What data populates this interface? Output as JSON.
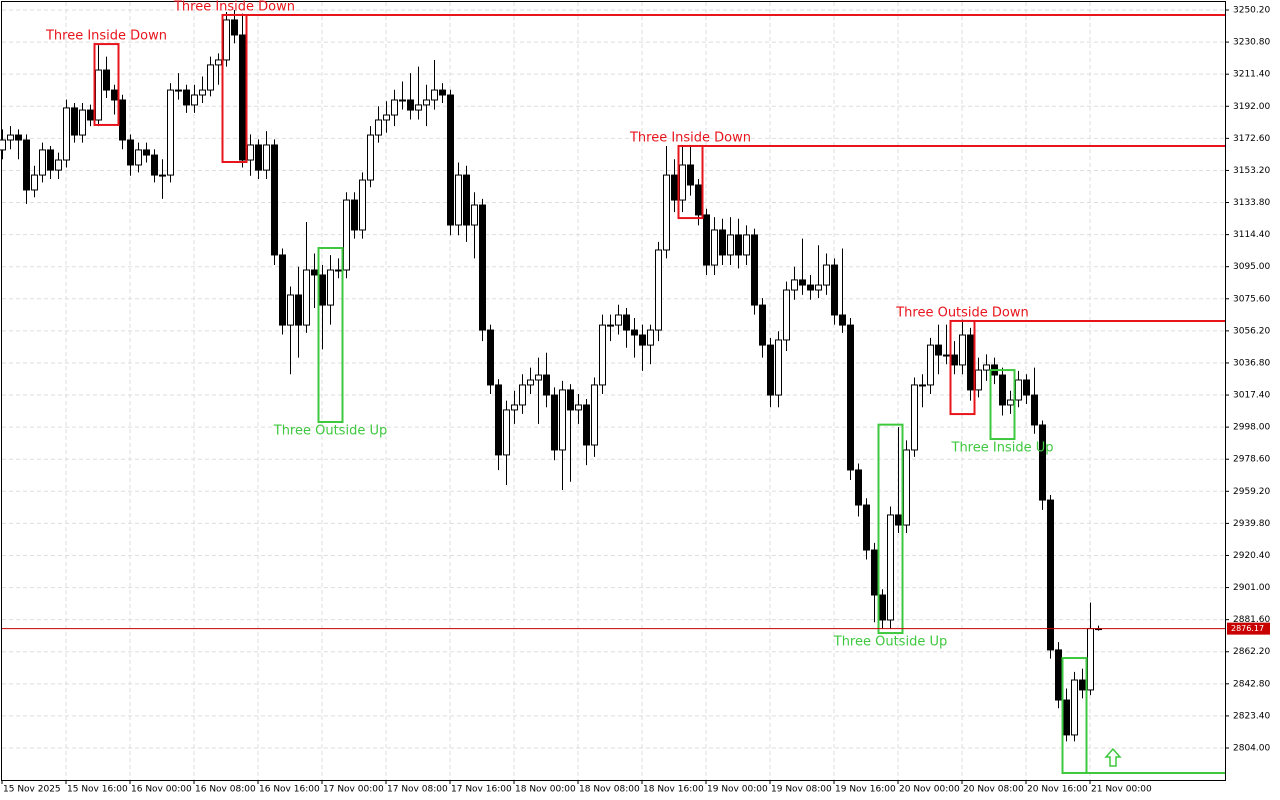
{
  "chart_data": {
    "type": "candlestick",
    "candles": [
      [
        3165.6,
        3178.0,
        3160.0,
        3171.6
      ],
      [
        3171.6,
        3180.0,
        3166.0,
        3174.6
      ],
      [
        3174.6,
        3178.0,
        3160.0,
        3171.6
      ],
      [
        3171.6,
        3175.0,
        3133.0,
        3141.4
      ],
      [
        3141.4,
        3156.0,
        3137.0,
        3150.4
      ],
      [
        3150.4,
        3170.0,
        3146.0,
        3165.6
      ],
      [
        3165.6,
        3168.0,
        3148.0,
        3153.4
      ],
      [
        3153.4,
        3164.0,
        3148.0,
        3159.5
      ],
      [
        3159.5,
        3196.0,
        3155.0,
        3191.0
      ],
      [
        3191.0,
        3194.0,
        3170.0,
        3174.6
      ],
      [
        3174.6,
        3194.0,
        3170.0,
        3189.7
      ],
      [
        3189.7,
        3193.0,
        3180.0,
        3183.7
      ],
      [
        3183.7,
        3229.0,
        3180.0,
        3213.9
      ],
      [
        3213.9,
        3222.0,
        3197.0,
        3201.8
      ],
      [
        3201.8,
        3205.0,
        3187.0,
        3195.8
      ],
      [
        3195.8,
        3199.0,
        3166.0,
        3171.6
      ],
      [
        3171.6,
        3175.0,
        3150.0,
        3156.5
      ],
      [
        3156.5,
        3170.0,
        3152.0,
        3165.6
      ],
      [
        3165.6,
        3170.0,
        3158.0,
        3162.5
      ],
      [
        3162.5,
        3166.0,
        3146.0,
        3150.4
      ],
      [
        3150.4,
        3160.0,
        3136.0,
        3150.4
      ],
      [
        3150.4,
        3206.0,
        3146.0,
        3201.8
      ],
      [
        3201.8,
        3212.0,
        3196.0,
        3201.8
      ],
      [
        3201.8,
        3205.0,
        3188.0,
        3192.8
      ],
      [
        3192.8,
        3205.0,
        3188.0,
        3198.8
      ],
      [
        3198.8,
        3210.0,
        3194.0,
        3201.8
      ],
      [
        3201.8,
        3222.0,
        3198.0,
        3217.0
      ],
      [
        3217.0,
        3224.0,
        3205.0,
        3220.0
      ],
      [
        3220.0,
        3249.0,
        3216.0,
        3244.2
      ],
      [
        3244.2,
        3250.2,
        3230.0,
        3235.1
      ],
      [
        3235.1,
        3248.0,
        3155.0,
        3159.5
      ],
      [
        3159.5,
        3175.0,
        3150.0,
        3168.6
      ],
      [
        3168.6,
        3172.0,
        3148.0,
        3153.4
      ],
      [
        3153.4,
        3177.0,
        3148.0,
        3168.6
      ],
      [
        3168.6,
        3172.0,
        3096.0,
        3102.1
      ],
      [
        3102.1,
        3106.0,
        3054.0,
        3059.7
      ],
      [
        3059.7,
        3083.0,
        3030.0,
        3077.9
      ],
      [
        3077.9,
        3095.0,
        3040.0,
        3059.7
      ],
      [
        3059.7,
        3122.0,
        3055.0,
        3093.0
      ],
      [
        3093.0,
        3103.0,
        3070.0,
        3090.0
      ],
      [
        3090.0,
        3096.0,
        3045.0,
        3071.8
      ],
      [
        3071.8,
        3102.0,
        3060.0,
        3093.0
      ],
      [
        3093.0,
        3100.0,
        3088.0,
        3093.0
      ],
      [
        3093.0,
        3140.0,
        3088.0,
        3135.3
      ],
      [
        3135.3,
        3140.0,
        3112.0,
        3117.2
      ],
      [
        3117.2,
        3152.0,
        3112.0,
        3147.4
      ],
      [
        3147.4,
        3180.0,
        3143.0,
        3174.6
      ],
      [
        3174.6,
        3192.0,
        3170.0,
        3183.7
      ],
      [
        3183.7,
        3195.0,
        3176.0,
        3186.7
      ],
      [
        3186.7,
        3202.0,
        3180.0,
        3195.8
      ],
      [
        3195.8,
        3207.0,
        3190.0,
        3195.8
      ],
      [
        3195.8,
        3212.0,
        3184.0,
        3189.7
      ],
      [
        3189.7,
        3216.0,
        3184.0,
        3192.8
      ],
      [
        3192.8,
        3205.0,
        3180.0,
        3195.8
      ],
      [
        3195.8,
        3220.0,
        3190.0,
        3201.8
      ],
      [
        3201.8,
        3206.0,
        3194.0,
        3198.8
      ],
      [
        3198.8,
        3202.0,
        3114.0,
        3120.2
      ],
      [
        3120.2,
        3158.0,
        3114.0,
        3150.4
      ],
      [
        3150.4,
        3156.0,
        3110.0,
        3120.2
      ],
      [
        3120.2,
        3140.0,
        3100.0,
        3132.3
      ],
      [
        3132.3,
        3136.0,
        3050.0,
        3056.7
      ],
      [
        3056.7,
        3060.0,
        3018.0,
        3023.5
      ],
      [
        3023.5,
        3027.0,
        2972.0,
        2981.2
      ],
      [
        2981.2,
        3014.0,
        2963.0,
        3008.4
      ],
      [
        3008.4,
        3020.0,
        3000.0,
        3011.4
      ],
      [
        3011.4,
        3030.0,
        3006.0,
        3023.5
      ],
      [
        3023.5,
        3034.0,
        3018.0,
        3026.5
      ],
      [
        3026.5,
        3040.0,
        3000.0,
        3029.5
      ],
      [
        3029.5,
        3043.0,
        3010.0,
        3017.4
      ],
      [
        3017.4,
        3022.0,
        2978.0,
        2984.2
      ],
      [
        2984.2,
        3026.0,
        2960.0,
        3020.5
      ],
      [
        3020.5,
        3024.0,
        2965.0,
        3008.4
      ],
      [
        3008.4,
        3018.0,
        3000.0,
        3011.4
      ],
      [
        3011.4,
        3015.0,
        2975.0,
        2987.2
      ],
      [
        2987.2,
        3028.0,
        2980.0,
        3023.5
      ],
      [
        3023.5,
        3066.0,
        3018.0,
        3059.7
      ],
      [
        3059.7,
        3066.0,
        3050.0,
        3059.7
      ],
      [
        3059.7,
        3072.0,
        3054.0,
        3065.8
      ],
      [
        3065.8,
        3070.0,
        3046.0,
        3056.7
      ],
      [
        3056.7,
        3064.0,
        3040.0,
        3053.7
      ],
      [
        3053.7,
        3060.0,
        3032.0,
        3047.6
      ],
      [
        3047.6,
        3060.0,
        3036.0,
        3056.7
      ],
      [
        3056.7,
        3110.0,
        3050.0,
        3105.1
      ],
      [
        3105.1,
        3168.0,
        3100.0,
        3150.4
      ],
      [
        3150.4,
        3160.0,
        3128.0,
        3135.3
      ],
      [
        3135.3,
        3168.0,
        3128.0,
        3156.5
      ],
      [
        3156.5,
        3168.0,
        3138.0,
        3144.4
      ],
      [
        3144.4,
        3148.0,
        3120.0,
        3126.3
      ],
      [
        3126.3,
        3130.0,
        3090.0,
        3096.0
      ],
      [
        3096.0,
        3125.0,
        3090.0,
        3117.2
      ],
      [
        3117.2,
        3124.0,
        3096.0,
        3102.1
      ],
      [
        3102.1,
        3125.0,
        3096.0,
        3114.2
      ],
      [
        3114.2,
        3124.0,
        3094.0,
        3102.1
      ],
      [
        3102.1,
        3120.0,
        3096.0,
        3114.2
      ],
      [
        3114.2,
        3118.0,
        3066.0,
        3071.8
      ],
      [
        3071.8,
        3076.0,
        3040.0,
        3047.6
      ],
      [
        3047.6,
        3052.0,
        3010.0,
        3017.4
      ],
      [
        3017.4,
        3056.0,
        3010.0,
        3050.7
      ],
      [
        3050.7,
        3086.0,
        3044.0,
        3080.9
      ],
      [
        3080.9,
        3095.0,
        3075.0,
        3087.0
      ],
      [
        3087.0,
        3112.0,
        3078.0,
        3083.9
      ],
      [
        3083.9,
        3090.0,
        3075.0,
        3080.9
      ],
      [
        3080.9,
        3108.0,
        3076.0,
        3083.9
      ],
      [
        3083.9,
        3103.0,
        3078.0,
        3096.0
      ],
      [
        3096.0,
        3100.0,
        3060.0,
        3065.8
      ],
      [
        3065.8,
        3106.0,
        3055.0,
        3059.7
      ],
      [
        3059.7,
        3064.0,
        2966.0,
        2972.1
      ],
      [
        2972.1,
        2976.0,
        2944.0,
        2950.9
      ],
      [
        2950.9,
        2955.0,
        2918.0,
        2923.7
      ],
      [
        2923.7,
        2928.0,
        2880.0,
        2896.5
      ],
      [
        2896.5,
        2900.0,
        2876.0,
        2881.4
      ],
      [
        2881.4,
        2950.0,
        2876.0,
        2944.9
      ],
      [
        2944.9,
        2998.0,
        2934.0,
        2938.8
      ],
      [
        2938.8,
        2990.0,
        2934.0,
        2984.2
      ],
      [
        2984.2,
        3028.0,
        2980.0,
        3023.5
      ],
      [
        3023.5,
        3030.0,
        3010.0,
        3023.5
      ],
      [
        3023.5,
        3052.0,
        3018.0,
        3047.6
      ],
      [
        3047.6,
        3060.0,
        3030.0,
        3041.6
      ],
      [
        3041.6,
        3060.0,
        3036.0,
        3041.6
      ],
      [
        3041.6,
        3050.0,
        3030.0,
        3035.6
      ],
      [
        3035.6,
        3063.0,
        3030.0,
        3053.7
      ],
      [
        3053.7,
        3058.0,
        3014.0,
        3020.5
      ],
      [
        3020.5,
        3040.0,
        3016.0,
        3032.5
      ],
      [
        3032.5,
        3042.0,
        3026.0,
        3035.6
      ],
      [
        3035.6,
        3040.0,
        3024.0,
        3029.5
      ],
      [
        3029.5,
        3034.0,
        3005.0,
        3011.4
      ],
      [
        3011.4,
        3020.0,
        3006.0,
        3014.4
      ],
      [
        3014.4,
        3032.0,
        3010.0,
        3026.5
      ],
      [
        3026.5,
        3030.0,
        3012.0,
        3017.4
      ],
      [
        3017.4,
        3034.0,
        2994.0,
        2999.3
      ],
      [
        2999.3,
        3002.0,
        2948.0,
        2953.9
      ],
      [
        2953.9,
        2957.0,
        2858.0,
        2863.3
      ],
      [
        2863.3,
        2868.0,
        2828.0,
        2833.0
      ],
      [
        2833.0,
        2840.0,
        2808.0,
        2811.9
      ],
      [
        2811.9,
        2850.0,
        2808.0,
        2845.1
      ],
      [
        2845.1,
        2852.0,
        2834.0,
        2839.1
      ],
      [
        2839.1,
        2892.0,
        2836.0,
        2876.2
      ],
      [
        2876.2,
        2878.0,
        2875.0,
        2876.2
      ]
    ],
    "patterns": [
      {
        "label": "Three Inside Down",
        "color": "#e8141c",
        "start": 12,
        "end": 14,
        "top": 3229.6,
        "bottom": 3180.7
      },
      {
        "label": "Three Inside Down",
        "color": "#e8141c",
        "start": 28,
        "end": 30,
        "top": 3247.2,
        "bottom": 3158.3,
        "line": 3247.2
      },
      {
        "label": "Three Outside Up",
        "color": "#3ec83e",
        "start": 40,
        "end": 42,
        "top": 3106.3,
        "bottom": 3001.1
      },
      {
        "label": "Three Inside Down",
        "color": "#e8141c",
        "start": 85,
        "end": 87,
        "top": 3168.0,
        "bottom": 3124.4,
        "line": 3168.0
      },
      {
        "label": "Three Outside Up",
        "color": "#3ec83e",
        "start": 110,
        "end": 112,
        "top": 2999.5,
        "bottom": 2873.5
      },
      {
        "label": "Three Outside Down",
        "color": "#e8141c",
        "start": 119,
        "end": 121,
        "top": 3062.2,
        "bottom": 3005.9,
        "line": 3062.2
      },
      {
        "label": "Three Inside Up",
        "color": "#3ec83e",
        "start": 124,
        "end": 126,
        "top": 3032.5,
        "bottom": 2990.8
      },
      {
        "color": "#3ec83e",
        "start": 133,
        "end": 135,
        "top": 2858.4,
        "bottom": 2788.9,
        "line": 2788.9
      }
    ],
    "current_price": 2876.17,
    "current_color": "#c80000",
    "xlim": [
      -0.25,
      152.875
    ],
    "xticks": [
      {
        "value": 0,
        "label": "15 Nov 2025"
      },
      {
        "value": 8,
        "label": "15 Nov 16:00"
      },
      {
        "value": 16,
        "label": "16 Nov 00:00"
      },
      {
        "value": 24,
        "label": "16 Nov 08:00"
      },
      {
        "value": 32,
        "label": "16 Nov 16:00"
      },
      {
        "value": 40,
        "label": "17 Nov 00:00"
      },
      {
        "value": 48,
        "label": "17 Nov 08:00"
      },
      {
        "value": 56,
        "label": "17 Nov 16:00"
      },
      {
        "value": 64,
        "label": "18 Nov 00:00"
      },
      {
        "value": 72,
        "label": "18 Nov 08:00"
      },
      {
        "value": 80,
        "label": "18 Nov 16:00"
      },
      {
        "value": 88,
        "label": "19 Nov 00:00"
      },
      {
        "value": 96,
        "label": "19 Nov 08:00"
      },
      {
        "value": 104,
        "label": "19 Nov 16:00"
      },
      {
        "value": 112,
        "label": "20 Nov 00:00"
      },
      {
        "value": 120,
        "label": "20 Nov 08:00"
      },
      {
        "value": 128,
        "label": "20 Nov 16:00"
      },
      {
        "value": 136,
        "label": "21 Nov 00:00"
      }
    ],
    "ylim": [
      2784.65,
      3256.25
    ],
    "yticks": [
      {
        "value": 3250.2,
        "label": "3250.20"
      },
      {
        "value": 3230.8,
        "label": "3230.80"
      },
      {
        "value": 3211.4,
        "label": "3211.40"
      },
      {
        "value": 3192,
        "label": "3192.00"
      },
      {
        "value": 3172.6,
        "label": "3172.60"
      },
      {
        "value": 3153.2,
        "label": "3153.20"
      },
      {
        "value": 3133.8,
        "label": "3133.80"
      },
      {
        "value": 3114.4,
        "label": "3114.40"
      },
      {
        "value": 3095,
        "label": "3095.00"
      },
      {
        "value": 3075.6,
        "label": "3075.60"
      },
      {
        "value": 3056.2,
        "label": "3056.20"
      },
      {
        "value": 3036.8,
        "label": "3036.80"
      },
      {
        "value": 3017.4,
        "label": "3017.40"
      },
      {
        "value": 2998,
        "label": "2998.00"
      },
      {
        "value": 2978.6,
        "label": "2978.60"
      },
      {
        "value": 2959.2,
        "label": "2959.20"
      },
      {
        "value": 2939.8,
        "label": "2939.80"
      },
      {
        "value": 2920.4,
        "label": "2920.40"
      },
      {
        "value": 2901,
        "label": "2901.00"
      },
      {
        "value": 2881.6,
        "label": "2881.60"
      },
      {
        "value": 2862.2,
        "label": "2862.20"
      },
      {
        "value": 2842.8,
        "label": "2842.80"
      },
      {
        "value": 2823.4,
        "label": "2823.40"
      },
      {
        "value": 2804,
        "label": "2804.00"
      }
    ],
    "grid": true
  }
}
